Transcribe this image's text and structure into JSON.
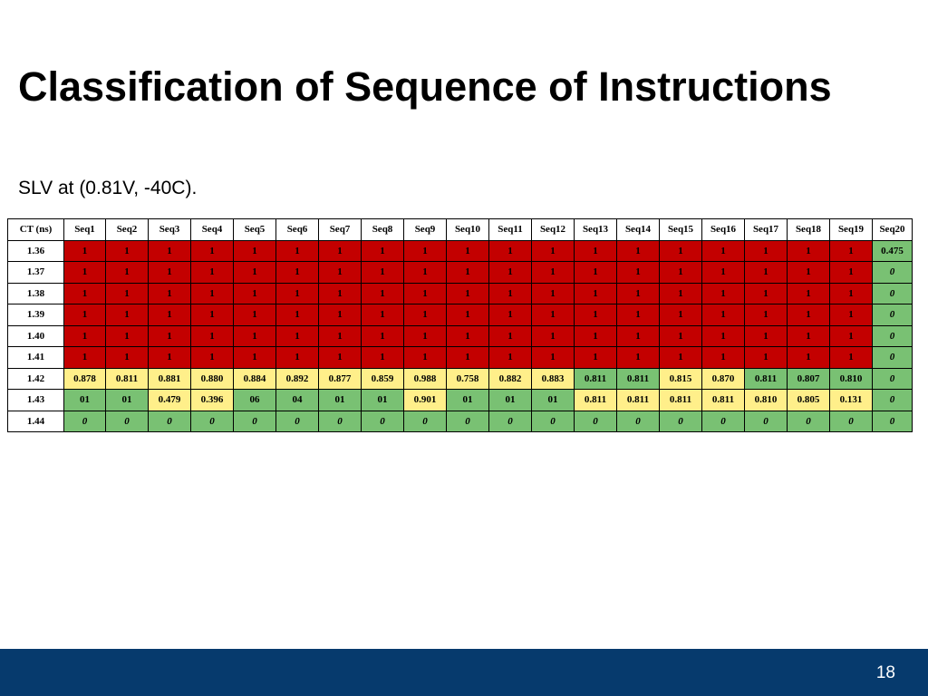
{
  "title": "Classification of Sequence of Instructions",
  "subtitle": "SLV at (0.81V, -40C).",
  "table": {
    "header_first": "CT (ns)",
    "columns": [
      "Seq1",
      "Seq2",
      "Seq3",
      "Seq4",
      "Seq5",
      "Seq6",
      "Seq7",
      "Seq8",
      "Seq9",
      "Seq10",
      "Seq11",
      "Seq12",
      "Seq13",
      "Seq14",
      "Seq15",
      "Seq16",
      "Seq17",
      "Seq18",
      "Seq19",
      "Seq20"
    ],
    "rows": [
      {
        "ct": "1.36",
        "cells": [
          "1",
          "1",
          "1",
          "1",
          "1",
          "1",
          "1",
          "1",
          "1",
          "1",
          "1",
          "1",
          "1",
          "1",
          "1",
          "1",
          "1",
          "1",
          "1",
          "0.475"
        ]
      },
      {
        "ct": "1.37",
        "cells": [
          "1",
          "1",
          "1",
          "1",
          "1",
          "1",
          "1",
          "1",
          "1",
          "1",
          "1",
          "1",
          "1",
          "1",
          "1",
          "1",
          "1",
          "1",
          "1",
          "0"
        ]
      },
      {
        "ct": "1.38",
        "cells": [
          "1",
          "1",
          "1",
          "1",
          "1",
          "1",
          "1",
          "1",
          "1",
          "1",
          "1",
          "1",
          "1",
          "1",
          "1",
          "1",
          "1",
          "1",
          "1",
          "0"
        ]
      },
      {
        "ct": "1.39",
        "cells": [
          "1",
          "1",
          "1",
          "1",
          "1",
          "1",
          "1",
          "1",
          "1",
          "1",
          "1",
          "1",
          "1",
          "1",
          "1",
          "1",
          "1",
          "1",
          "1",
          "0"
        ]
      },
      {
        "ct": "1.40",
        "cells": [
          "1",
          "1",
          "1",
          "1",
          "1",
          "1",
          "1",
          "1",
          "1",
          "1",
          "1",
          "1",
          "1",
          "1",
          "1",
          "1",
          "1",
          "1",
          "1",
          "0"
        ]
      },
      {
        "ct": "1.41",
        "cells": [
          "1",
          "1",
          "1",
          "1",
          "1",
          "1",
          "1",
          "1",
          "1",
          "1",
          "1",
          "1",
          "1",
          "1",
          "1",
          "1",
          "1",
          "1",
          "1",
          "0"
        ]
      },
      {
        "ct": "1.42",
        "cells": [
          "0.878",
          "0.811",
          "0.881",
          "0.880",
          "0.884",
          "0.892",
          "0.877",
          "0.859",
          "0.988",
          "0.758",
          "0.882",
          "0.883",
          "0.811",
          "0.811",
          "0.815",
          "0.870",
          "0.811",
          "0.807",
          "0.810",
          "0"
        ]
      },
      {
        "ct": "1.43",
        "cells": [
          "01",
          "01",
          "0.479",
          "0.396",
          "06",
          "04",
          "01",
          "01",
          "0.901",
          "01",
          "01",
          "01",
          "0.811",
          "0.811",
          "0.811",
          "0.811",
          "0.810",
          "0.805",
          "0.131",
          "0"
        ]
      },
      {
        "ct": "1.44",
        "cells": [
          "0",
          "0",
          "0",
          "0",
          "0",
          "0",
          "0",
          "0",
          "0",
          "0",
          "0",
          "0",
          "0",
          "0",
          "0",
          "0",
          "0",
          "0",
          "0",
          "0"
        ]
      }
    ],
    "cell_colors": [
      [
        "red",
        "red",
        "red",
        "red",
        "red",
        "red",
        "red",
        "red",
        "red",
        "red",
        "red",
        "red",
        "red",
        "red",
        "red",
        "red",
        "red",
        "red",
        "red",
        "green"
      ],
      [
        "red",
        "red",
        "red",
        "red",
        "red",
        "red",
        "red",
        "red",
        "red",
        "red",
        "red",
        "red",
        "red",
        "red",
        "red",
        "red",
        "red",
        "red",
        "red",
        "green"
      ],
      [
        "red",
        "red",
        "red",
        "red",
        "red",
        "red",
        "red",
        "red",
        "red",
        "red",
        "red",
        "red",
        "red",
        "red",
        "red",
        "red",
        "red",
        "red",
        "red",
        "green"
      ],
      [
        "red",
        "red",
        "red",
        "red",
        "red",
        "red",
        "red",
        "red",
        "red",
        "red",
        "red",
        "red",
        "red",
        "red",
        "red",
        "red",
        "red",
        "red",
        "red",
        "green"
      ],
      [
        "red",
        "red",
        "red",
        "red",
        "red",
        "red",
        "red",
        "red",
        "red",
        "red",
        "red",
        "red",
        "red",
        "red",
        "red",
        "red",
        "red",
        "red",
        "red",
        "green"
      ],
      [
        "red",
        "red",
        "red",
        "red",
        "red",
        "red",
        "red",
        "red",
        "red",
        "red",
        "red",
        "red",
        "red",
        "red",
        "red",
        "red",
        "red",
        "red",
        "red",
        "green"
      ],
      [
        "yellow",
        "yellow",
        "yellow",
        "yellow",
        "yellow",
        "yellow",
        "yellow",
        "yellow",
        "yellow",
        "yellow",
        "yellow",
        "yellow",
        "green",
        "green",
        "yellow",
        "yellow",
        "green",
        "green",
        "green",
        "green"
      ],
      [
        "green",
        "green",
        "yellow",
        "yellow",
        "green",
        "green",
        "green",
        "green",
        "yellow",
        "green",
        "green",
        "green",
        "yellow",
        "yellow",
        "yellow",
        "yellow",
        "yellow",
        "yellow",
        "yellow",
        "green"
      ],
      [
        "green",
        "green",
        "green",
        "green",
        "green",
        "green",
        "green",
        "green",
        "green",
        "green",
        "green",
        "green",
        "green",
        "green",
        "green",
        "green",
        "green",
        "green",
        "green",
        "green"
      ]
    ],
    "italic_value": "0",
    "colors": {
      "red": "#c30000",
      "yellow": "#ffef8a",
      "green": "#79c173"
    }
  },
  "footer": {
    "page_number": "18",
    "color": "#063a6d"
  }
}
